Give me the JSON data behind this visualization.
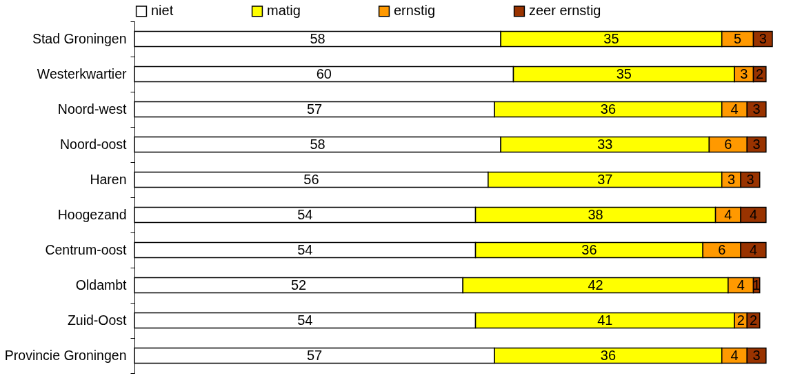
{
  "chart_data": {
    "type": "bar",
    "orientation": "horizontal",
    "stacked": true,
    "data_labels": true,
    "legend": "top",
    "grid": false,
    "categories": [
      "Stad Groningen",
      "Westerkwartier",
      "Noord-west",
      "Noord-oost",
      "Haren",
      "Hoogezand",
      "Centrum-oost",
      "Oldambt",
      "Zuid-Oost",
      "Provincie Groningen"
    ],
    "series": [
      {
        "name": "niet",
        "color": "#ffffff",
        "values": [
          58,
          60,
          57,
          58,
          56,
          54,
          54,
          52,
          54,
          57
        ]
      },
      {
        "name": "matig",
        "color": "#ffff00",
        "values": [
          35,
          35,
          36,
          33,
          37,
          38,
          36,
          42,
          41,
          36
        ]
      },
      {
        "name": "ernstig",
        "color": "#ff9900",
        "values": [
          5,
          3,
          4,
          6,
          3,
          4,
          6,
          4,
          2,
          4
        ]
      },
      {
        "name": "zeer ernstig",
        "color": "#993300",
        "values": [
          3,
          2,
          3,
          3,
          3,
          4,
          4,
          1,
          2,
          3
        ]
      }
    ]
  }
}
